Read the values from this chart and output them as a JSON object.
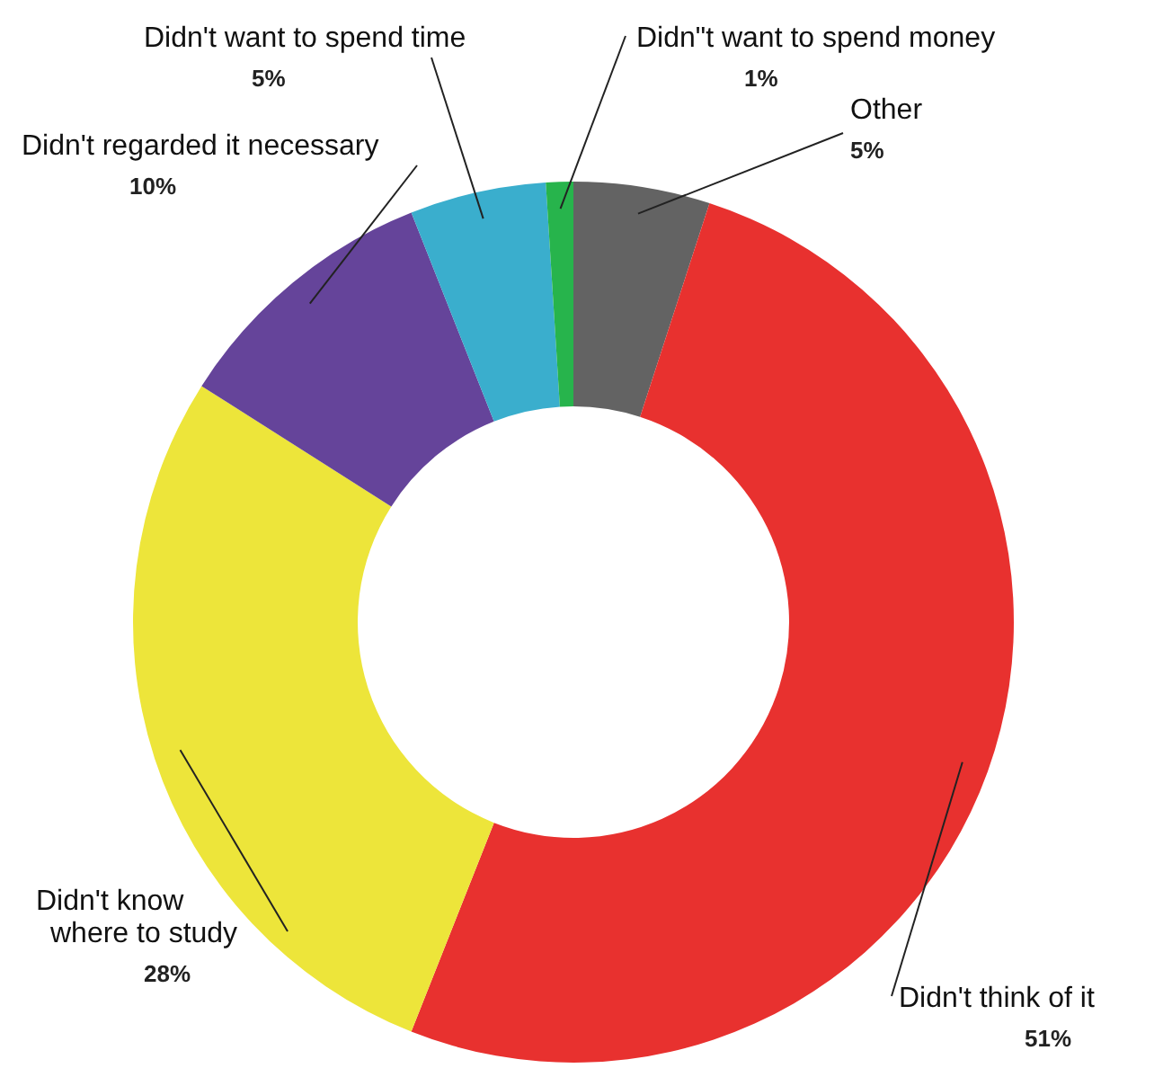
{
  "chart_data": {
    "type": "donut",
    "categories": [
      "Other",
      "Didn't think of it",
      "Didn't know where to study",
      "Didn't regarded it necessary",
      "Didn't want to spend time",
      "Didn\"t want to spend money"
    ],
    "values": [
      5,
      51,
      28,
      10,
      5,
      1
    ],
    "colors": [
      "#636363",
      "#e8312f",
      "#ede53a",
      "#65449a",
      "#3aaecd",
      "#27b44c"
    ],
    "value_labels": [
      "5%",
      "51%",
      "28%",
      "10%",
      "5%",
      "1%"
    ]
  }
}
